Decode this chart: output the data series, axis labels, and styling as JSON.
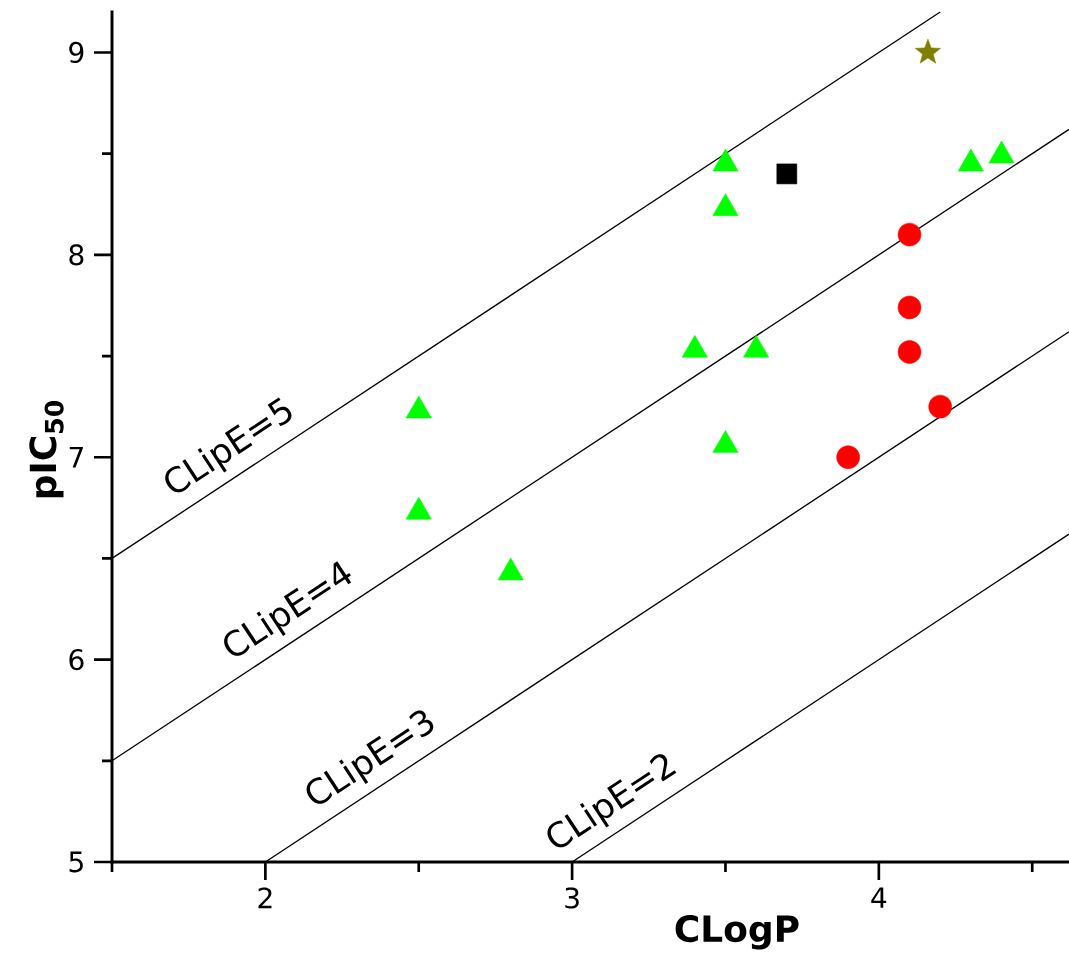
{
  "chart_data": {
    "type": "scatter",
    "xlabel": "CLogP",
    "ylabel": "pIC$_{50}$",
    "xlim": [
      1.5,
      4.62
    ],
    "ylim": [
      5,
      9.2
    ],
    "xticks": [
      {
        "value": 1.5,
        "label": null
      },
      2,
      {
        "value": 2.5,
        "label": null
      },
      3,
      {
        "value": 3.5,
        "label": null
      },
      4,
      {
        "value": 4.5,
        "label": null
      }
    ],
    "yticks": [
      5,
      {
        "value": 5.5,
        "label": null
      },
      6,
      {
        "value": 6.5,
        "label": null
      },
      7,
      {
        "value": 7.5,
        "label": null
      },
      8,
      {
        "value": 8.5,
        "label": null
      },
      9
    ],
    "series": [
      {
        "marker": "triangle",
        "color": "#00ff00",
        "x": [
          2.5,
          2.5,
          2.8,
          3.4,
          3.5,
          3.5,
          3.5,
          3.6,
          4.3,
          4.4
        ],
        "values": [
          7.23,
          6.73,
          6.43,
          7.53,
          8.45,
          8.23,
          7.06,
          7.53,
          8.45,
          8.49
        ]
      },
      {
        "marker": "circle",
        "color": "#ff0000",
        "x": [
          3.9,
          4.1,
          4.1,
          4.1,
          4.2
        ],
        "values": [
          7.0,
          7.52,
          7.74,
          8.1,
          7.25
        ]
      },
      {
        "marker": "square",
        "color": "#000000",
        "x": [
          3.7
        ],
        "values": [
          8.4
        ]
      },
      {
        "marker": "star",
        "color": "#808000",
        "x": [
          4.16
        ],
        "values": [
          9.0
        ]
      },
      {
        "type": "line",
        "name": "CLipE=5",
        "color": "#000000",
        "x": [
          1.5,
          4.2
        ],
        "values": [
          6.5,
          9.2
        ]
      },
      {
        "type": "line",
        "name": "CLipE=4",
        "color": "#000000",
        "x": [
          1.5,
          4.62
        ],
        "values": [
          5.5,
          8.62
        ]
      },
      {
        "type": "line",
        "name": "CLipE=3",
        "color": "#000000",
        "x": [
          2,
          4.62
        ],
        "values": [
          5,
          7.62
        ]
      },
      {
        "type": "line",
        "name": "CLipE=2",
        "color": "#000000",
        "x": [
          3,
          4.62
        ],
        "values": [
          5,
          6.62
        ]
      }
    ]
  }
}
